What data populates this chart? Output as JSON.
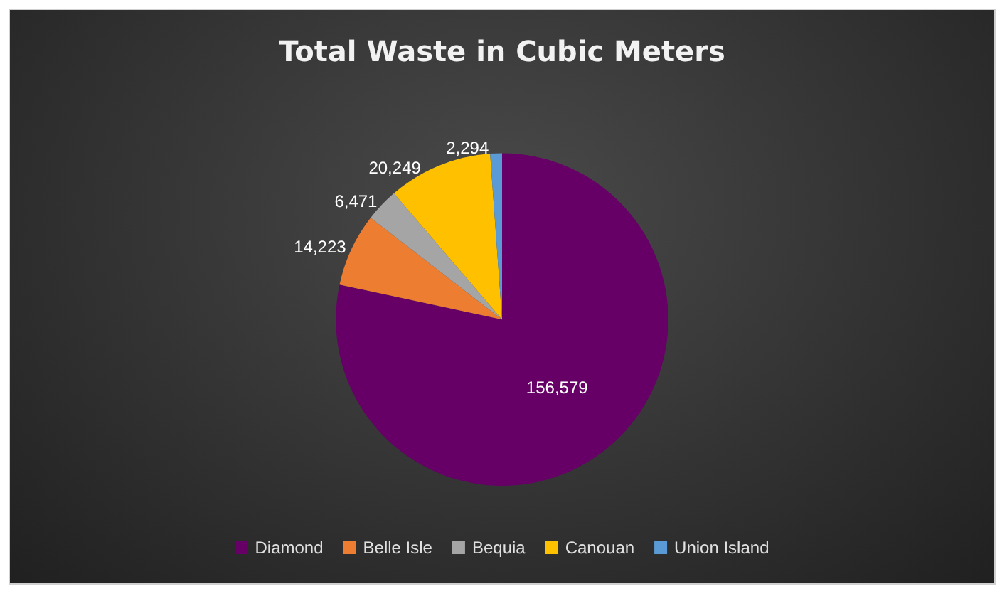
{
  "chart_data": {
    "type": "pie",
    "title": "Total Waste in Cubic Meters",
    "categories": [
      "Diamond",
      "Belle Isle",
      "Bequia",
      "Canouan",
      "Union Island"
    ],
    "values": [
      156579,
      14223,
      6471,
      20249,
      2294
    ],
    "colors": [
      "#660066",
      "#ed7d31",
      "#a5a5a5",
      "#ffc000",
      "#5b9bd5"
    ],
    "value_labels": [
      "156,579",
      "14,223",
      "6,471",
      "20,249",
      "2,294"
    ],
    "legend": "bottom"
  }
}
